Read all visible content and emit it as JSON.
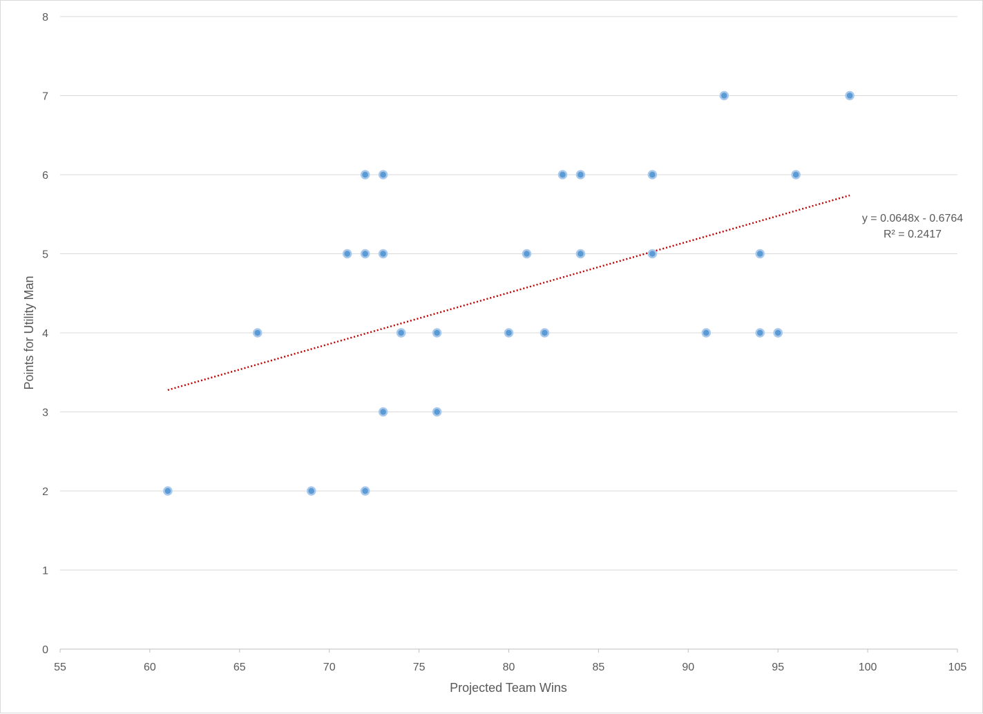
{
  "chart_data": {
    "type": "scatter",
    "title": "",
    "xlabel": "Projected Team Wins",
    "ylabel": "Points for Utility Man",
    "xlim": [
      55,
      105
    ],
    "ylim": [
      0,
      8
    ],
    "x_ticks": [
      55,
      60,
      65,
      70,
      75,
      80,
      85,
      90,
      95,
      100,
      105
    ],
    "y_ticks": [
      0,
      1,
      2,
      3,
      4,
      5,
      6,
      7,
      8
    ],
    "grid": "horizontal",
    "legend": "none",
    "series": [
      {
        "color": "#5b9bd5",
        "points": [
          [
            61,
            2
          ],
          [
            66,
            4
          ],
          [
            69,
            2
          ],
          [
            71,
            5
          ],
          [
            72,
            6
          ],
          [
            72,
            5
          ],
          [
            72,
            2
          ],
          [
            73,
            6
          ],
          [
            73,
            5
          ],
          [
            73,
            3
          ],
          [
            74,
            4
          ],
          [
            74,
            4
          ],
          [
            76,
            4
          ],
          [
            76,
            3
          ],
          [
            80,
            4
          ],
          [
            81,
            5
          ],
          [
            82,
            4
          ],
          [
            83,
            6
          ],
          [
            84,
            6
          ],
          [
            84,
            5
          ],
          [
            88,
            6
          ],
          [
            88,
            5
          ],
          [
            91,
            4
          ],
          [
            92,
            7
          ],
          [
            94,
            5
          ],
          [
            94,
            4
          ],
          [
            95,
            4
          ],
          [
            95,
            4
          ],
          [
            96,
            6
          ],
          [
            99,
            7
          ]
        ]
      }
    ],
    "trendline": {
      "type": "linear",
      "color": "#c00000",
      "slope": 0.0648,
      "intercept": -0.6764,
      "x_range": [
        61,
        99
      ],
      "equation": "y = 0.0648x - 0.6764",
      "r_squared": "R² = 0.2417"
    }
  }
}
